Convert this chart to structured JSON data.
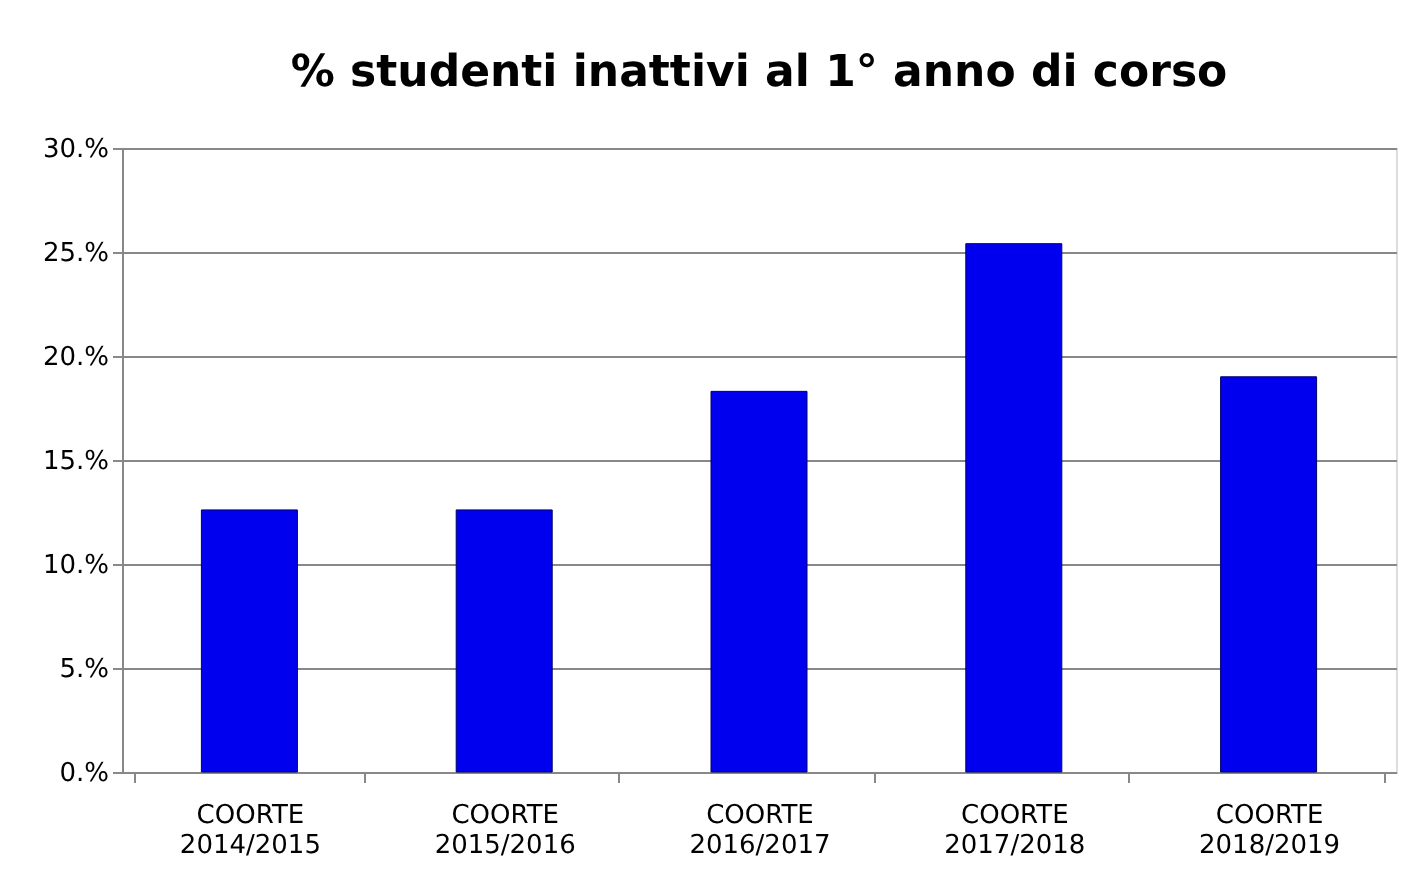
{
  "chart_data": {
    "type": "bar",
    "title": "% studenti inattivi al 1° anno di corso",
    "categories": [
      "COORTE 2014/2015",
      "COORTE 2015/2016",
      "COORTE 2016/2017",
      "COORTE 2017/2018",
      "COORTE 2018/2019"
    ],
    "values": [
      12.6,
      12.6,
      18.3,
      25.4,
      19.0
    ],
    "color": "#0000ee",
    "ylim": [
      0,
      30
    ],
    "yticks": [
      {
        "value": 0,
        "label": "0.%"
      },
      {
        "value": 5,
        "label": "5.%"
      },
      {
        "value": 10,
        "label": "10.%"
      },
      {
        "value": 15,
        "label": "15.%"
      },
      {
        "value": 20,
        "label": "20.%"
      },
      {
        "value": 25,
        "label": "25.%"
      },
      {
        "value": 30,
        "label": "30.%"
      }
    ],
    "grid": "y"
  }
}
